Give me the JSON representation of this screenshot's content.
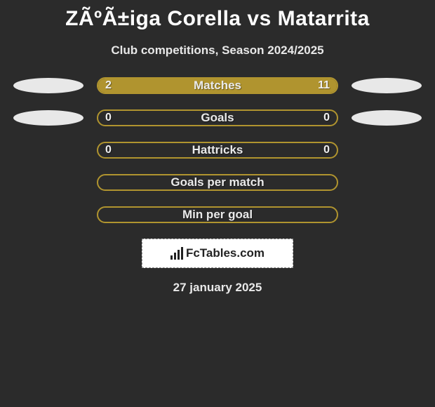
{
  "title": "ZÃºÃ±iga Corella vs Matarrita",
  "subtitle": "Club competitions, Season 2024/2025",
  "date": "27 january 2025",
  "logo_text": "FcTables.com",
  "colors": {
    "accent": "#b0942f",
    "background": "#2b2b2b",
    "ellipse": "#e8e8e8"
  },
  "stats": [
    {
      "label": "Matches",
      "left_val": "2",
      "right_val": "11",
      "left_fill_pct": 15,
      "right_fill_pct": 85,
      "show_ellipses": true
    },
    {
      "label": "Goals",
      "left_val": "0",
      "right_val": "0",
      "left_fill_pct": 0,
      "right_fill_pct": 0,
      "show_ellipses": true
    },
    {
      "label": "Hattricks",
      "left_val": "0",
      "right_val": "0",
      "left_fill_pct": 0,
      "right_fill_pct": 0,
      "show_ellipses": false
    },
    {
      "label": "Goals per match",
      "left_val": "",
      "right_val": "",
      "left_fill_pct": 0,
      "right_fill_pct": 0,
      "show_ellipses": false
    },
    {
      "label": "Min per goal",
      "left_val": "",
      "right_val": "",
      "left_fill_pct": 0,
      "right_fill_pct": 0,
      "show_ellipses": false
    }
  ]
}
